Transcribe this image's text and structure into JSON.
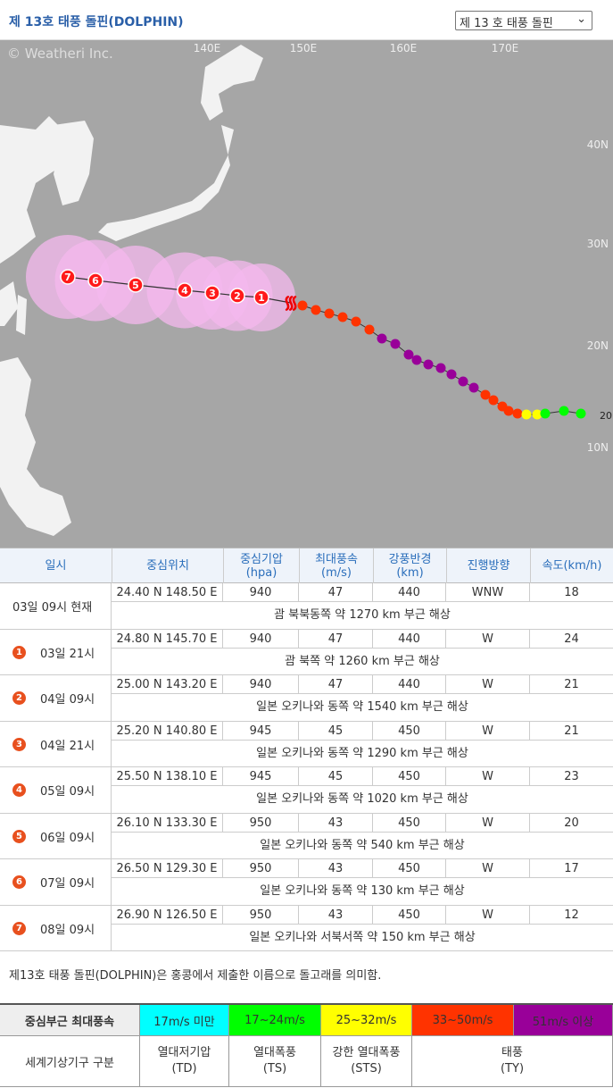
{
  "header": {
    "title": "제 13호 태풍 돌핀(DOLPHIN)",
    "select": "제 13 호 태풍 돌핀"
  },
  "map": {
    "copyright": "© Weatheri Inc.",
    "lon_labels": [
      "140E",
      "150E",
      "160E",
      "170E"
    ],
    "lat_labels": [
      "40N",
      "30N",
      "20N",
      "10N"
    ],
    "edge_label": "20",
    "forecast_markers": [
      "1",
      "2",
      "3",
      "4",
      "5",
      "6",
      "7"
    ]
  },
  "table": {
    "headers": [
      {
        "name": "일시"
      },
      {
        "name": "중심위치"
      },
      {
        "name": "중심기압",
        "unit": "(hpa)"
      },
      {
        "name": "최대풍속",
        "unit": "(m/s)"
      },
      {
        "name": "강풍반경",
        "unit": "(km)"
      },
      {
        "name": "진행방향"
      },
      {
        "name": "속도(km/h)"
      }
    ],
    "rows": [
      {
        "time": "03일 09시 현재",
        "position": "24.40 N 148.50 E",
        "pressure": 940,
        "wind": 47,
        "radius": 440,
        "direction": "WNW",
        "speed": 18,
        "description": "괌 북북동쪽 약 1270 km 부근 해상"
      },
      {
        "marker": "1",
        "time": "03일 21시",
        "position": "24.80 N 145.70 E",
        "pressure": 940,
        "wind": 47,
        "radius": 440,
        "direction": "W",
        "speed": 24,
        "description": "괌 북쪽 약 1260 km 부근 해상"
      },
      {
        "marker": "2",
        "time": "04일 09시",
        "position": "25.00 N 143.20 E",
        "pressure": 940,
        "wind": 47,
        "radius": 440,
        "direction": "W",
        "speed": 21,
        "description": "일본 오키나와 동쪽 약 1540 km 부근 해상"
      },
      {
        "marker": "3",
        "time": "04일 21시",
        "position": "25.20 N 140.80 E",
        "pressure": 945,
        "wind": 45,
        "radius": 450,
        "direction": "W",
        "speed": 21,
        "description": "일본 오키나와 동쪽 약 1290 km 부근 해상"
      },
      {
        "marker": "4",
        "time": "05일 09시",
        "position": "25.50 N 138.10 E",
        "pressure": 945,
        "wind": 45,
        "radius": 450,
        "direction": "W",
        "speed": 23,
        "description": "일본 오키나와 동쪽 약 1020 km 부근 해상"
      },
      {
        "marker": "5",
        "time": "06일 09시",
        "position": "26.10 N 133.30 E",
        "pressure": 950,
        "wind": 43,
        "radius": 450,
        "direction": "W",
        "speed": 20,
        "description": "일본 오키나와 동쪽 약 540 km 부근 해상"
      },
      {
        "marker": "6",
        "time": "07일 09시",
        "position": "26.50 N 129.30 E",
        "pressure": 950,
        "wind": 43,
        "radius": 450,
        "direction": "W",
        "speed": 17,
        "description": "일본 오키나와 동쪽 약 130 km 부근 해상"
      },
      {
        "marker": "7",
        "time": "08일 09시",
        "position": "26.90 N 126.50 E",
        "pressure": 950,
        "wind": 43,
        "radius": 450,
        "direction": "W",
        "speed": 12,
        "description": "일본 오키나와 서북서쪽 약 150 km 부근 해상"
      }
    ]
  },
  "note": "제13호 태풍 돌핀(DOLPHIN)은 홍콩에서 제출한 이름으로 돌고래를 의미함.",
  "legend": {
    "wind_label": "중심부근 최대풍속",
    "wind_classes": [
      {
        "label": "17m/s 미만",
        "color": "#00ffff"
      },
      {
        "label": "17~24m/s",
        "color": "#00ff00"
      },
      {
        "label": "25~32m/s",
        "color": "#ffff00"
      },
      {
        "label": "33~50m/s",
        "color": "#ff3300"
      },
      {
        "label": "51m/s 이상",
        "color": "#990099"
      }
    ],
    "wmo_label": "세계기상기구 구분",
    "wmo_classes": [
      {
        "name": "열대저기압",
        "abbr": "(TD)"
      },
      {
        "name": "열대폭풍",
        "abbr": "(TS)"
      },
      {
        "name": "강한 열대폭풍",
        "abbr": "(STS)"
      },
      {
        "name": "태풍",
        "abbr": "(TY)"
      }
    ]
  }
}
